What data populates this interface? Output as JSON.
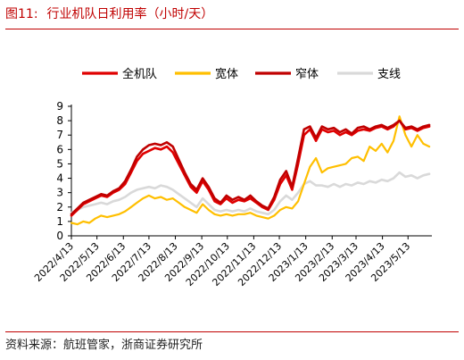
{
  "figure": {
    "number": "图11:",
    "title": "行业机队日利用率（小时/天）",
    "source": "资料来源：航班管家，浙商证券研究所"
  },
  "chart_data": {
    "type": "line",
    "title": "行业机队日利用率（小时/天）",
    "xlabel": "",
    "ylabel": "",
    "ylim": [
      0,
      9
    ],
    "yticks": [
      0,
      1,
      2,
      3,
      4,
      5,
      6,
      7,
      8,
      9
    ],
    "xlim": [
      "2022-04-13",
      "2023-06-10"
    ],
    "xticks": [
      {
        "date": "2022-04-13",
        "label": "2022/4/13"
      },
      {
        "date": "2022-05-13",
        "label": "2022/5/13"
      },
      {
        "date": "2022-06-13",
        "label": "2022/6/13"
      },
      {
        "date": "2022-07-13",
        "label": "2022/7/13"
      },
      {
        "date": "2022-08-13",
        "label": "2022/8/13"
      },
      {
        "date": "2022-09-13",
        "label": "2022/9/13"
      },
      {
        "date": "2022-10-13",
        "label": "2022/10/13"
      },
      {
        "date": "2022-11-13",
        "label": "2022/11/13"
      },
      {
        "date": "2022-12-13",
        "label": "2022/12/13"
      },
      {
        "date": "2023-01-13",
        "label": "2023/1/13"
      },
      {
        "date": "2023-02-13",
        "label": "2023/2/13"
      },
      {
        "date": "2023-03-13",
        "label": "2023/3/13"
      },
      {
        "date": "2023-04-13",
        "label": "2023/4/13"
      },
      {
        "date": "2023-05-13",
        "label": "2023/5/13"
      }
    ],
    "grid": false,
    "legend_position": "top",
    "series": [
      {
        "name": "全机队",
        "color": "#e00000",
        "stroke": 2.6,
        "points": [
          [
            "2022-04-13",
            1.4
          ],
          [
            "2022-04-20",
            1.8
          ],
          [
            "2022-04-27",
            2.2
          ],
          [
            "2022-05-04",
            2.4
          ],
          [
            "2022-05-11",
            2.6
          ],
          [
            "2022-05-18",
            2.8
          ],
          [
            "2022-05-25",
            2.7
          ],
          [
            "2022-06-01",
            3.0
          ],
          [
            "2022-06-08",
            3.2
          ],
          [
            "2022-06-15",
            3.6
          ],
          [
            "2022-06-22",
            4.4
          ],
          [
            "2022-06-29",
            5.2
          ],
          [
            "2022-07-06",
            5.7
          ],
          [
            "2022-07-13",
            5.9
          ],
          [
            "2022-07-20",
            6.1
          ],
          [
            "2022-07-27",
            6.0
          ],
          [
            "2022-08-03",
            6.2
          ],
          [
            "2022-08-10",
            5.8
          ],
          [
            "2022-08-17",
            5.0
          ],
          [
            "2022-08-24",
            4.2
          ],
          [
            "2022-08-31",
            3.4
          ],
          [
            "2022-09-07",
            3.0
          ],
          [
            "2022-09-14",
            3.8
          ],
          [
            "2022-09-21",
            3.2
          ],
          [
            "2022-09-28",
            2.4
          ],
          [
            "2022-10-05",
            2.2
          ],
          [
            "2022-10-12",
            2.6
          ],
          [
            "2022-10-19",
            2.3
          ],
          [
            "2022-10-26",
            2.5
          ],
          [
            "2022-11-02",
            2.4
          ],
          [
            "2022-11-09",
            2.6
          ],
          [
            "2022-11-16",
            2.3
          ],
          [
            "2022-11-23",
            2.0
          ],
          [
            "2022-11-30",
            1.8
          ],
          [
            "2022-12-07",
            2.5
          ],
          [
            "2022-12-14",
            3.6
          ],
          [
            "2022-12-21",
            4.2
          ],
          [
            "2022-12-28",
            3.2
          ],
          [
            "2023-01-04",
            5.0
          ],
          [
            "2023-01-11",
            7.0
          ],
          [
            "2023-01-18",
            7.4
          ],
          [
            "2023-01-25",
            6.6
          ],
          [
            "2023-02-01",
            7.4
          ],
          [
            "2023-02-08",
            7.2
          ],
          [
            "2023-02-15",
            7.3
          ],
          [
            "2023-02-22",
            7.0
          ],
          [
            "2023-03-01",
            7.2
          ],
          [
            "2023-03-08",
            7.0
          ],
          [
            "2023-03-15",
            7.3
          ],
          [
            "2023-03-22",
            7.4
          ],
          [
            "2023-03-29",
            7.3
          ],
          [
            "2023-04-05",
            7.5
          ],
          [
            "2023-04-12",
            7.6
          ],
          [
            "2023-04-19",
            7.4
          ],
          [
            "2023-04-26",
            7.6
          ],
          [
            "2023-05-03",
            8.0
          ],
          [
            "2023-05-10",
            7.4
          ],
          [
            "2023-05-17",
            7.5
          ],
          [
            "2023-05-24",
            7.3
          ],
          [
            "2023-05-31",
            7.5
          ],
          [
            "2023-06-07",
            7.6
          ]
        ]
      },
      {
        "name": "宽体",
        "color": "#ffbf00",
        "stroke": 2.2,
        "points": [
          [
            "2022-04-13",
            0.9
          ],
          [
            "2022-04-20",
            0.8
          ],
          [
            "2022-04-27",
            1.0
          ],
          [
            "2022-05-04",
            0.9
          ],
          [
            "2022-05-11",
            1.2
          ],
          [
            "2022-05-18",
            1.4
          ],
          [
            "2022-05-25",
            1.3
          ],
          [
            "2022-06-01",
            1.4
          ],
          [
            "2022-06-08",
            1.5
          ],
          [
            "2022-06-15",
            1.7
          ],
          [
            "2022-06-22",
            2.0
          ],
          [
            "2022-06-29",
            2.3
          ],
          [
            "2022-07-06",
            2.6
          ],
          [
            "2022-07-13",
            2.8
          ],
          [
            "2022-07-20",
            2.6
          ],
          [
            "2022-07-27",
            2.7
          ],
          [
            "2022-08-03",
            2.5
          ],
          [
            "2022-08-10",
            2.6
          ],
          [
            "2022-08-17",
            2.3
          ],
          [
            "2022-08-24",
            2.0
          ],
          [
            "2022-08-31",
            1.8
          ],
          [
            "2022-09-07",
            1.6
          ],
          [
            "2022-09-14",
            2.2
          ],
          [
            "2022-09-21",
            1.8
          ],
          [
            "2022-09-28",
            1.5
          ],
          [
            "2022-10-05",
            1.4
          ],
          [
            "2022-10-12",
            1.5
          ],
          [
            "2022-10-19",
            1.4
          ],
          [
            "2022-10-26",
            1.5
          ],
          [
            "2022-11-02",
            1.5
          ],
          [
            "2022-11-09",
            1.6
          ],
          [
            "2022-11-16",
            1.4
          ],
          [
            "2022-11-23",
            1.3
          ],
          [
            "2022-11-30",
            1.2
          ],
          [
            "2022-12-07",
            1.4
          ],
          [
            "2022-12-14",
            1.8
          ],
          [
            "2022-12-21",
            2.0
          ],
          [
            "2022-12-28",
            1.9
          ],
          [
            "2023-01-04",
            2.4
          ],
          [
            "2023-01-11",
            3.6
          ],
          [
            "2023-01-18",
            4.8
          ],
          [
            "2023-01-25",
            5.4
          ],
          [
            "2023-02-01",
            4.4
          ],
          [
            "2023-02-08",
            4.7
          ],
          [
            "2023-02-15",
            4.8
          ],
          [
            "2023-02-22",
            4.9
          ],
          [
            "2023-03-01",
            5.0
          ],
          [
            "2023-03-08",
            5.4
          ],
          [
            "2023-03-15",
            5.5
          ],
          [
            "2023-03-22",
            5.2
          ],
          [
            "2023-03-29",
            6.2
          ],
          [
            "2023-04-05",
            5.9
          ],
          [
            "2023-04-12",
            6.4
          ],
          [
            "2023-04-19",
            5.8
          ],
          [
            "2023-04-26",
            6.6
          ],
          [
            "2023-05-03",
            8.3
          ],
          [
            "2023-05-10",
            7.0
          ],
          [
            "2023-05-17",
            6.2
          ],
          [
            "2023-05-24",
            7.0
          ],
          [
            "2023-05-31",
            6.4
          ],
          [
            "2023-06-07",
            6.2
          ]
        ]
      },
      {
        "name": "窄体",
        "color": "#c00000",
        "stroke": 2.6,
        "points": [
          [
            "2022-04-13",
            1.5
          ],
          [
            "2022-04-20",
            1.9
          ],
          [
            "2022-04-27",
            2.3
          ],
          [
            "2022-05-04",
            2.5
          ],
          [
            "2022-05-11",
            2.7
          ],
          [
            "2022-05-18",
            2.9
          ],
          [
            "2022-05-25",
            2.8
          ],
          [
            "2022-06-01",
            3.1
          ],
          [
            "2022-06-08",
            3.3
          ],
          [
            "2022-06-15",
            3.8
          ],
          [
            "2022-06-22",
            4.6
          ],
          [
            "2022-06-29",
            5.5
          ],
          [
            "2022-07-06",
            6.0
          ],
          [
            "2022-07-13",
            6.3
          ],
          [
            "2022-07-20",
            6.4
          ],
          [
            "2022-07-27",
            6.3
          ],
          [
            "2022-08-03",
            6.5
          ],
          [
            "2022-08-10",
            6.2
          ],
          [
            "2022-08-17",
            5.3
          ],
          [
            "2022-08-24",
            4.4
          ],
          [
            "2022-08-31",
            3.6
          ],
          [
            "2022-09-07",
            3.2
          ],
          [
            "2022-09-14",
            4.0
          ],
          [
            "2022-09-21",
            3.4
          ],
          [
            "2022-09-28",
            2.6
          ],
          [
            "2022-10-05",
            2.3
          ],
          [
            "2022-10-12",
            2.8
          ],
          [
            "2022-10-19",
            2.5
          ],
          [
            "2022-10-26",
            2.7
          ],
          [
            "2022-11-02",
            2.5
          ],
          [
            "2022-11-09",
            2.8
          ],
          [
            "2022-11-16",
            2.4
          ],
          [
            "2022-11-23",
            2.1
          ],
          [
            "2022-11-30",
            1.9
          ],
          [
            "2022-12-07",
            2.7
          ],
          [
            "2022-12-14",
            3.9
          ],
          [
            "2022-12-21",
            4.5
          ],
          [
            "2022-12-28",
            3.4
          ],
          [
            "2023-01-04",
            5.4
          ],
          [
            "2023-01-11",
            7.4
          ],
          [
            "2023-01-18",
            7.6
          ],
          [
            "2023-01-25",
            6.8
          ],
          [
            "2023-02-01",
            7.6
          ],
          [
            "2023-02-08",
            7.4
          ],
          [
            "2023-02-15",
            7.5
          ],
          [
            "2023-02-22",
            7.2
          ],
          [
            "2023-03-01",
            7.4
          ],
          [
            "2023-03-08",
            7.1
          ],
          [
            "2023-03-15",
            7.5
          ],
          [
            "2023-03-22",
            7.6
          ],
          [
            "2023-03-29",
            7.4
          ],
          [
            "2023-04-05",
            7.6
          ],
          [
            "2023-04-12",
            7.7
          ],
          [
            "2023-04-19",
            7.5
          ],
          [
            "2023-04-26",
            7.7
          ],
          [
            "2023-05-03",
            8.0
          ],
          [
            "2023-05-10",
            7.5
          ],
          [
            "2023-05-17",
            7.6
          ],
          [
            "2023-05-24",
            7.4
          ],
          [
            "2023-05-31",
            7.6
          ],
          [
            "2023-06-07",
            7.7
          ]
        ]
      },
      {
        "name": "支线",
        "color": "#d9d9d9",
        "stroke": 2.6,
        "points": [
          [
            "2022-04-13",
            1.6
          ],
          [
            "2022-04-20",
            1.8
          ],
          [
            "2022-04-27",
            2.0
          ],
          [
            "2022-05-04",
            2.1
          ],
          [
            "2022-05-11",
            2.2
          ],
          [
            "2022-05-18",
            2.3
          ],
          [
            "2022-05-25",
            2.2
          ],
          [
            "2022-06-01",
            2.4
          ],
          [
            "2022-06-08",
            2.5
          ],
          [
            "2022-06-15",
            2.7
          ],
          [
            "2022-06-22",
            3.0
          ],
          [
            "2022-06-29",
            3.2
          ],
          [
            "2022-07-06",
            3.3
          ],
          [
            "2022-07-13",
            3.4
          ],
          [
            "2022-07-20",
            3.3
          ],
          [
            "2022-07-27",
            3.5
          ],
          [
            "2022-08-03",
            3.4
          ],
          [
            "2022-08-10",
            3.2
          ],
          [
            "2022-08-17",
            2.9
          ],
          [
            "2022-08-24",
            2.6
          ],
          [
            "2022-08-31",
            2.3
          ],
          [
            "2022-09-07",
            2.0
          ],
          [
            "2022-09-14",
            2.6
          ],
          [
            "2022-09-21",
            2.2
          ],
          [
            "2022-09-28",
            1.8
          ],
          [
            "2022-10-05",
            1.7
          ],
          [
            "2022-10-12",
            1.8
          ],
          [
            "2022-10-19",
            1.7
          ],
          [
            "2022-10-26",
            1.8
          ],
          [
            "2022-11-02",
            1.7
          ],
          [
            "2022-11-09",
            1.9
          ],
          [
            "2022-11-16",
            1.7
          ],
          [
            "2022-11-23",
            1.6
          ],
          [
            "2022-11-30",
            1.5
          ],
          [
            "2022-12-07",
            1.8
          ],
          [
            "2022-12-14",
            2.4
          ],
          [
            "2022-12-21",
            2.8
          ],
          [
            "2022-12-28",
            2.5
          ],
          [
            "2023-01-04",
            3.0
          ],
          [
            "2023-01-11",
            3.6
          ],
          [
            "2023-01-18",
            3.8
          ],
          [
            "2023-01-25",
            3.5
          ],
          [
            "2023-02-01",
            3.5
          ],
          [
            "2023-02-08",
            3.4
          ],
          [
            "2023-02-15",
            3.6
          ],
          [
            "2023-02-22",
            3.4
          ],
          [
            "2023-03-01",
            3.6
          ],
          [
            "2023-03-08",
            3.5
          ],
          [
            "2023-03-15",
            3.7
          ],
          [
            "2023-03-22",
            3.6
          ],
          [
            "2023-03-29",
            3.8
          ],
          [
            "2023-04-05",
            3.7
          ],
          [
            "2023-04-12",
            3.9
          ],
          [
            "2023-04-19",
            3.8
          ],
          [
            "2023-04-26",
            4.0
          ],
          [
            "2023-05-03",
            4.4
          ],
          [
            "2023-05-10",
            4.1
          ],
          [
            "2023-05-17",
            4.2
          ],
          [
            "2023-05-24",
            4.0
          ],
          [
            "2023-05-31",
            4.2
          ],
          [
            "2023-06-07",
            4.3
          ]
        ]
      }
    ]
  }
}
